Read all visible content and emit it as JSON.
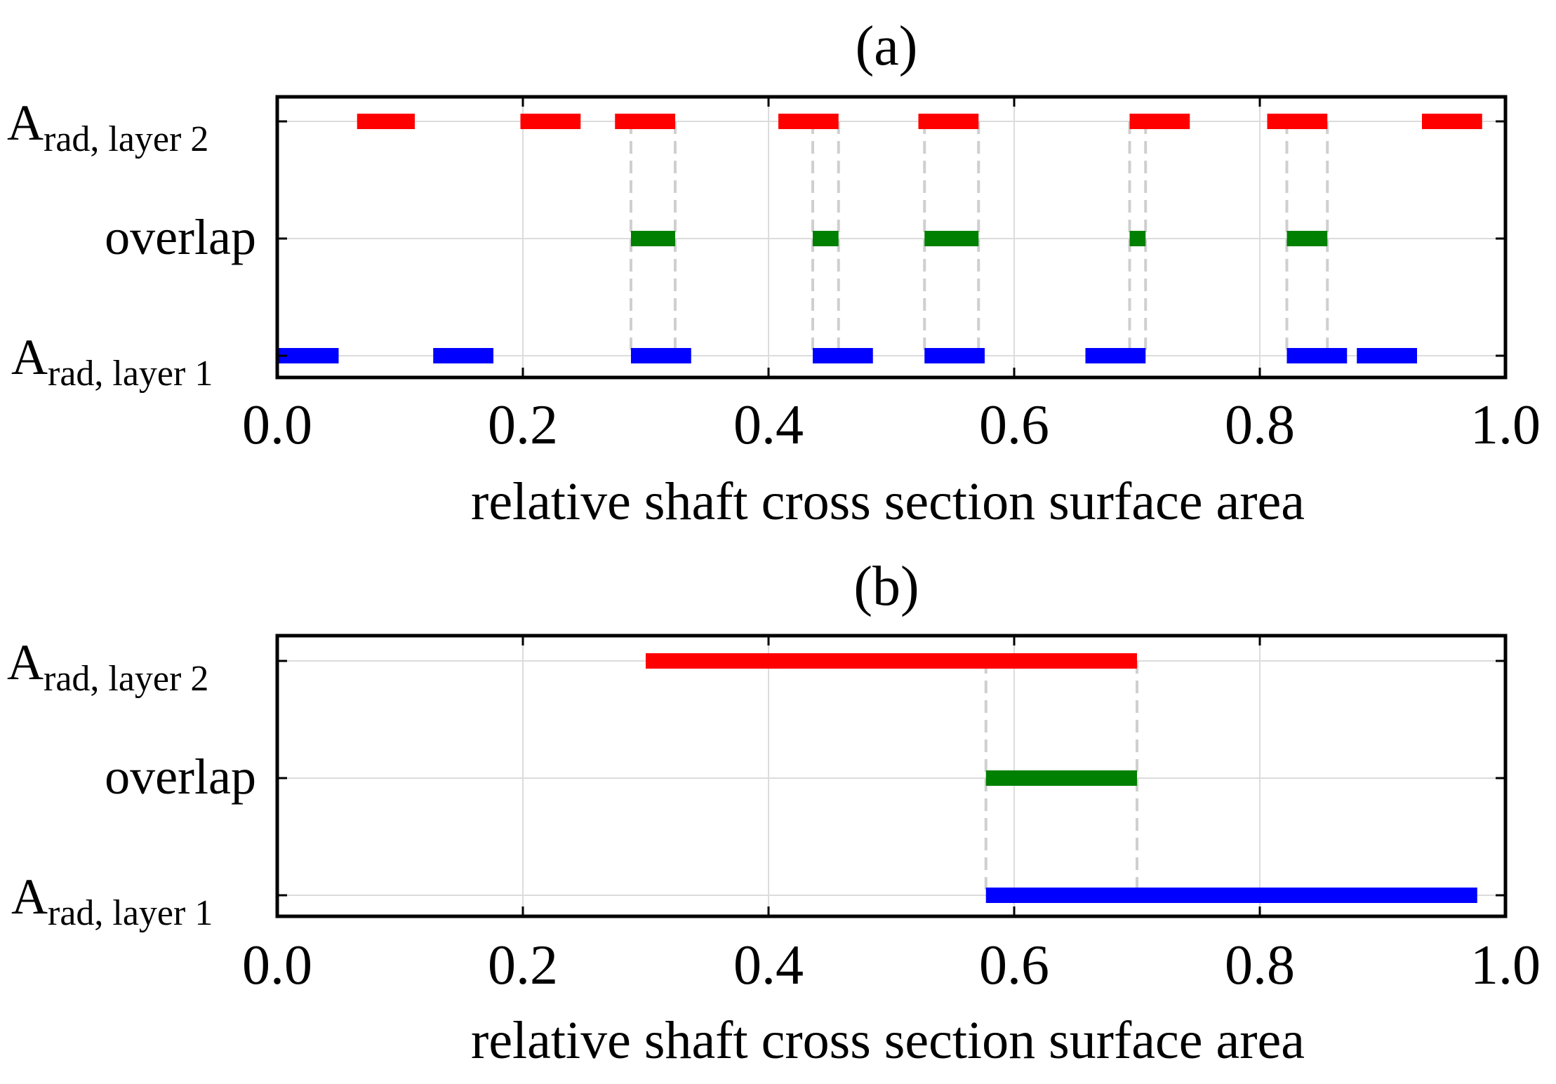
{
  "chart_data": [
    {
      "type": "interval",
      "panel": "(a)",
      "xlabel": "relative shaft cross section surface area",
      "xlim": [
        0.0,
        1.0
      ],
      "xticks": [
        "0.0",
        "0.2",
        "0.4",
        "0.6",
        "0.8",
        "1.0"
      ],
      "grid": true,
      "rows": [
        {
          "key": "layer2",
          "base": "A",
          "sub": "rad, layer 2",
          "color": "#ff0000",
          "intervals": [
            [
              0.065,
              0.112
            ],
            [
              0.198,
              0.247
            ],
            [
              0.275,
              0.324
            ],
            [
              0.408,
              0.457
            ],
            [
              0.522,
              0.571
            ],
            [
              0.694,
              0.743
            ],
            [
              0.806,
              0.855
            ],
            [
              0.932,
              0.981
            ]
          ]
        },
        {
          "key": "overlap",
          "label": "overlap",
          "color": "#008000",
          "intervals": [
            [
              0.288,
              0.324
            ],
            [
              0.436,
              0.457
            ],
            [
              0.527,
              0.571
            ],
            [
              0.694,
              0.707
            ],
            [
              0.822,
              0.855
            ]
          ]
        },
        {
          "key": "layer1",
          "base": "A",
          "sub": "rad, layer 1",
          "color": "#0000ff",
          "intervals": [
            [
              0.0,
              0.05
            ],
            [
              0.127,
              0.176
            ],
            [
              0.288,
              0.337
            ],
            [
              0.436,
              0.485
            ],
            [
              0.527,
              0.576
            ],
            [
              0.658,
              0.707
            ],
            [
              0.822,
              0.871
            ],
            [
              0.879,
              0.928
            ]
          ]
        }
      ]
    },
    {
      "type": "interval",
      "panel": "(b)",
      "xlabel": "relative shaft cross section surface area",
      "xlim": [
        0.0,
        1.0
      ],
      "xticks": [
        "0.0",
        "0.2",
        "0.4",
        "0.6",
        "0.8",
        "1.0"
      ],
      "grid": true,
      "rows": [
        {
          "key": "layer2",
          "base": "A",
          "sub": "rad, layer 2",
          "color": "#ff0000",
          "intervals": [
            [
              0.3,
              0.7
            ]
          ]
        },
        {
          "key": "overlap",
          "label": "overlap",
          "color": "#008000",
          "intervals": [
            [
              0.577,
              0.7
            ]
          ]
        },
        {
          "key": "layer1",
          "base": "A",
          "sub": "rad, layer 1",
          "color": "#0000ff",
          "intervals": [
            [
              0.577,
              0.977
            ]
          ]
        }
      ]
    }
  ]
}
